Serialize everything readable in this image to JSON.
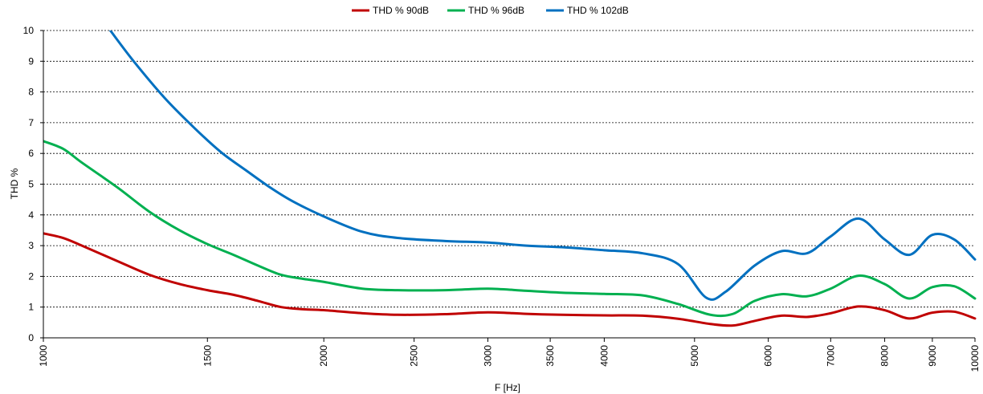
{
  "chart_data": {
    "type": "line",
    "title": "",
    "xlabel": "F [Hz]",
    "ylabel": "THD %",
    "x_scale": "log",
    "xlim": [
      1000,
      10000
    ],
    "ylim": [
      0,
      10
    ],
    "x_ticks": [
      1000,
      1500,
      2000,
      2500,
      3000,
      3500,
      4000,
      5000,
      6000,
      7000,
      8000,
      9000,
      10000
    ],
    "x_tick_labels": [
      "1000",
      "1500",
      "2000",
      "2500",
      "3000",
      "3500",
      "4000",
      "5000",
      "6000",
      "7000",
      "8000",
      "9000",
      "10000"
    ],
    "y_ticks": [
      0,
      1,
      2,
      3,
      4,
      5,
      6,
      7,
      8,
      9,
      10
    ],
    "y_tick_labels": [
      "0",
      "1",
      "2",
      "3",
      "4",
      "5",
      "6",
      "7",
      "8",
      "9",
      "10"
    ],
    "grid": "horizontal dashed",
    "legend_position": "top-center",
    "series": [
      {
        "name": "THD % 90dB",
        "color": "#c00000",
        "x": [
          1000,
          1050,
          1100,
          1200,
          1300,
          1400,
          1500,
          1600,
          1700,
          1800,
          1900,
          2000,
          2200,
          2400,
          2700,
          3000,
          3300,
          3600,
          4000,
          4400,
          4800,
          5200,
          5500,
          5800,
          6200,
          6600,
          7000,
          7500,
          8000,
          8500,
          9000,
          9500,
          10000
        ],
        "y": [
          3.4,
          3.25,
          3.0,
          2.5,
          2.05,
          1.75,
          1.55,
          1.4,
          1.2,
          1.0,
          0.93,
          0.9,
          0.8,
          0.75,
          0.77,
          0.83,
          0.78,
          0.75,
          0.73,
          0.72,
          0.62,
          0.45,
          0.4,
          0.55,
          0.72,
          0.68,
          0.8,
          1.02,
          0.9,
          0.63,
          0.82,
          0.85,
          0.63
        ]
      },
      {
        "name": "THD % 96dB",
        "color": "#00b050",
        "x": [
          1000,
          1050,
          1100,
          1200,
          1300,
          1400,
          1500,
          1600,
          1700,
          1800,
          1900,
          2000,
          2200,
          2400,
          2700,
          3000,
          3300,
          3600,
          4000,
          4400,
          4800,
          5200,
          5500,
          5800,
          6200,
          6600,
          7000,
          7500,
          8000,
          8500,
          9000,
          9500,
          10000
        ],
        "y": [
          6.4,
          6.15,
          5.7,
          4.9,
          4.1,
          3.5,
          3.05,
          2.7,
          2.35,
          2.05,
          1.92,
          1.82,
          1.6,
          1.55,
          1.55,
          1.6,
          1.53,
          1.47,
          1.43,
          1.38,
          1.1,
          0.75,
          0.78,
          1.2,
          1.42,
          1.35,
          1.6,
          2.02,
          1.75,
          1.28,
          1.65,
          1.68,
          1.28
        ]
      },
      {
        "name": "THD % 102dB",
        "color": "#0070c0",
        "x": [
          1180,
          1250,
          1350,
          1450,
          1550,
          1650,
          1750,
          1850,
          2000,
          2200,
          2400,
          2700,
          3000,
          3300,
          3600,
          4000,
          4400,
          4800,
          5150,
          5400,
          5800,
          6200,
          6600,
          7000,
          7500,
          8000,
          8500,
          9000,
          9500,
          10000
        ],
        "y": [
          10.0,
          9.0,
          7.8,
          6.85,
          6.05,
          5.45,
          4.9,
          4.45,
          3.95,
          3.45,
          3.25,
          3.15,
          3.1,
          3.0,
          2.95,
          2.85,
          2.75,
          2.4,
          1.3,
          1.5,
          2.35,
          2.82,
          2.75,
          3.3,
          3.88,
          3.2,
          2.7,
          3.35,
          3.2,
          2.55
        ]
      }
    ]
  }
}
